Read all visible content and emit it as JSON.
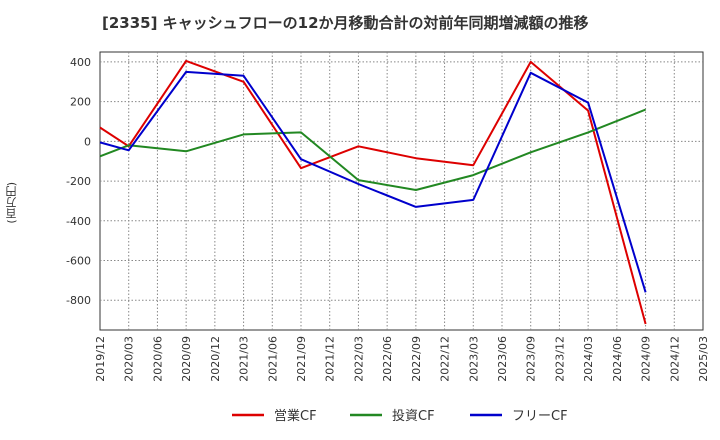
{
  "chart_data": {
    "type": "line",
    "title": "[2335]  キャッシュフローの12か月移動合計の対前年同期増減額の推移",
    "ylabel": "(百万円)",
    "ylim": [
      -950,
      450
    ],
    "yticks": [
      400,
      200,
      0,
      -200,
      -400,
      -600,
      -800
    ],
    "xticks": [
      "2019/12",
      "2020/03",
      "2020/06",
      "2020/09",
      "2020/12",
      "2021/03",
      "2021/06",
      "2021/09",
      "2021/12",
      "2022/03",
      "2022/06",
      "2022/09",
      "2022/12",
      "2023/03",
      "2023/06",
      "2023/09",
      "2023/12",
      "2024/03",
      "2024/06",
      "2024/09",
      "2024/12",
      "2025/03"
    ],
    "series": [
      {
        "name": "営業CF",
        "color": "#dd0000",
        "values": [
          {
            "x": 0,
            "y": 70
          },
          {
            "x": 1,
            "y": -25
          },
          {
            "x": 3,
            "y": 405
          },
          {
            "x": 5,
            "y": 300
          },
          {
            "x": 7,
            "y": -135
          },
          {
            "x": 9,
            "y": -25
          },
          {
            "x": 11,
            "y": -85
          },
          {
            "x": 13,
            "y": -120
          },
          {
            "x": 15,
            "y": 400
          },
          {
            "x": 17,
            "y": 155
          },
          {
            "x": 19,
            "y": -920
          }
        ]
      },
      {
        "name": "投資CF",
        "color": "#228822",
        "values": [
          {
            "x": 0,
            "y": -75
          },
          {
            "x": 1,
            "y": -20
          },
          {
            "x": 3,
            "y": -50
          },
          {
            "x": 5,
            "y": 35
          },
          {
            "x": 7,
            "y": 45
          },
          {
            "x": 9,
            "y": -195
          },
          {
            "x": 11,
            "y": -245
          },
          {
            "x": 13,
            "y": -170
          },
          {
            "x": 15,
            "y": -55
          },
          {
            "x": 17,
            "y": 45
          },
          {
            "x": 19,
            "y": 160
          }
        ]
      },
      {
        "name": "フリーCF",
        "color": "#0000cc",
        "values": [
          {
            "x": 0,
            "y": -5
          },
          {
            "x": 1,
            "y": -45
          },
          {
            "x": 3,
            "y": 350
          },
          {
            "x": 5,
            "y": 330
          },
          {
            "x": 7,
            "y": -90
          },
          {
            "x": 9,
            "y": -215
          },
          {
            "x": 11,
            "y": -330
          },
          {
            "x": 13,
            "y": -295
          },
          {
            "x": 15,
            "y": 345
          },
          {
            "x": 17,
            "y": 195
          },
          {
            "x": 19,
            "y": -760
          }
        ]
      }
    ]
  }
}
